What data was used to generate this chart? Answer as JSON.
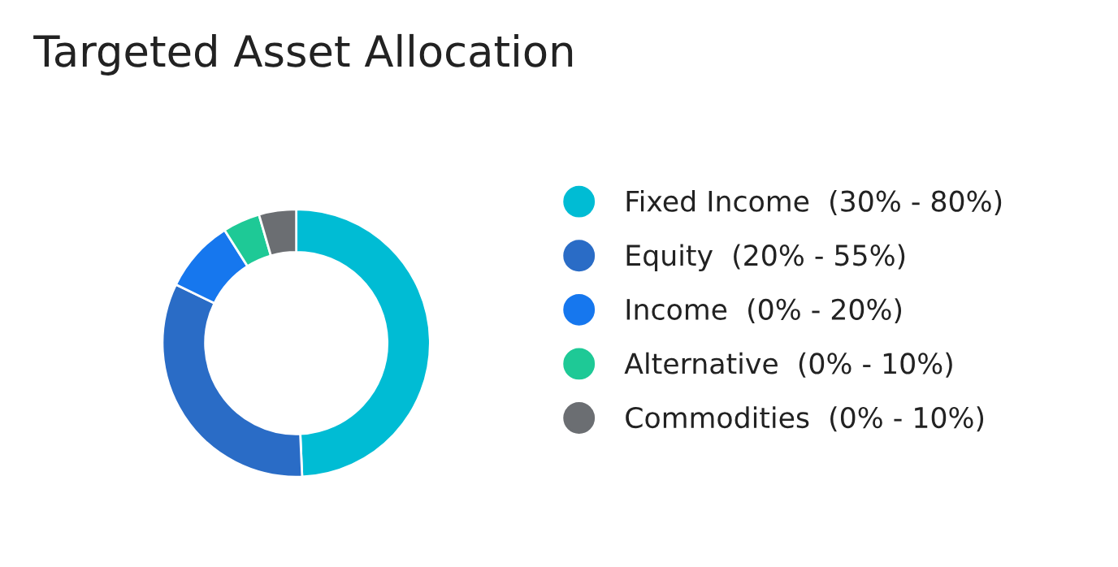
{
  "chart_data": {
    "type": "donut",
    "title": "Targeted Asset Allocation",
    "categories": [
      "Fixed Income  (30% - 80%)",
      "Equity  (20% - 55%)",
      "Income  (0% - 20%)",
      "Alternative  (0% - 10%)",
      "Commodities  (0% - 10%)"
    ],
    "values": [
      49.3,
      32.9,
      8.8,
      4.5,
      4.5
    ],
    "colors": [
      "#00bcd4",
      "#2a6cc6",
      "#1677ee",
      "#1ec996",
      "#6b6e72"
    ],
    "legend": "right"
  }
}
